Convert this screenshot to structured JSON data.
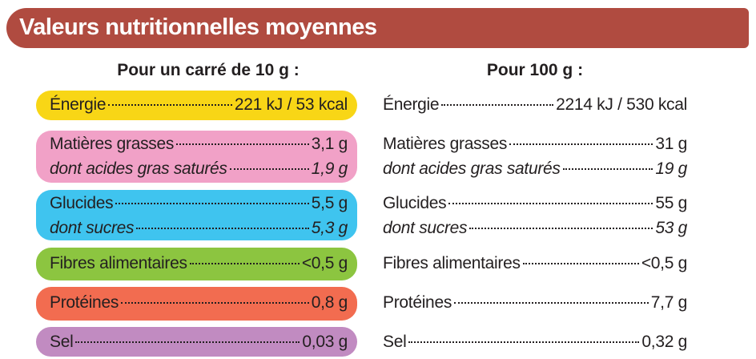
{
  "header": {
    "title": "Valeurs nutritionnelles moyennes"
  },
  "columns": {
    "per_portion": "Pour un carré de 10 g :",
    "per_100g": "Pour 100 g :"
  },
  "groups": [
    {
      "color": "#f8d616",
      "rows": [
        {
          "label": "Énergie",
          "per_portion": "221 kJ / 53 kcal",
          "per_100g": "2214 kJ / 530 kcal",
          "italic": false
        }
      ]
    },
    {
      "color": "#f1a1c7",
      "rows": [
        {
          "label": "Matières grasses",
          "per_portion": "3,1 g",
          "per_100g": "31 g",
          "italic": false
        },
        {
          "label": "dont acides gras saturés",
          "per_portion": "1,9 g",
          "per_100g": "19 g",
          "italic": true
        }
      ]
    },
    {
      "color": "#3fc4ef",
      "rows": [
        {
          "label": "Glucides",
          "per_portion": "5,5 g",
          "per_100g": "55 g",
          "italic": false
        },
        {
          "label": "dont sucres",
          "per_portion": "5,3 g",
          "per_100g": "53 g",
          "italic": true
        }
      ]
    },
    {
      "color": "#8cc540",
      "rows": [
        {
          "label": "Fibres alimentaires",
          "per_portion": "<0,5 g",
          "per_100g": "<0,5 g",
          "italic": false
        }
      ]
    },
    {
      "color": "#f26c50",
      "rows": [
        {
          "label": "Protéines",
          "per_portion": "0,8 g",
          "per_100g": "7,7 g",
          "italic": false
        }
      ]
    },
    {
      "color": "#c18bc1",
      "rows": [
        {
          "label": "Sel",
          "per_portion": "0,03 g",
          "per_100g": "0,32 g",
          "italic": false
        }
      ]
    }
  ]
}
